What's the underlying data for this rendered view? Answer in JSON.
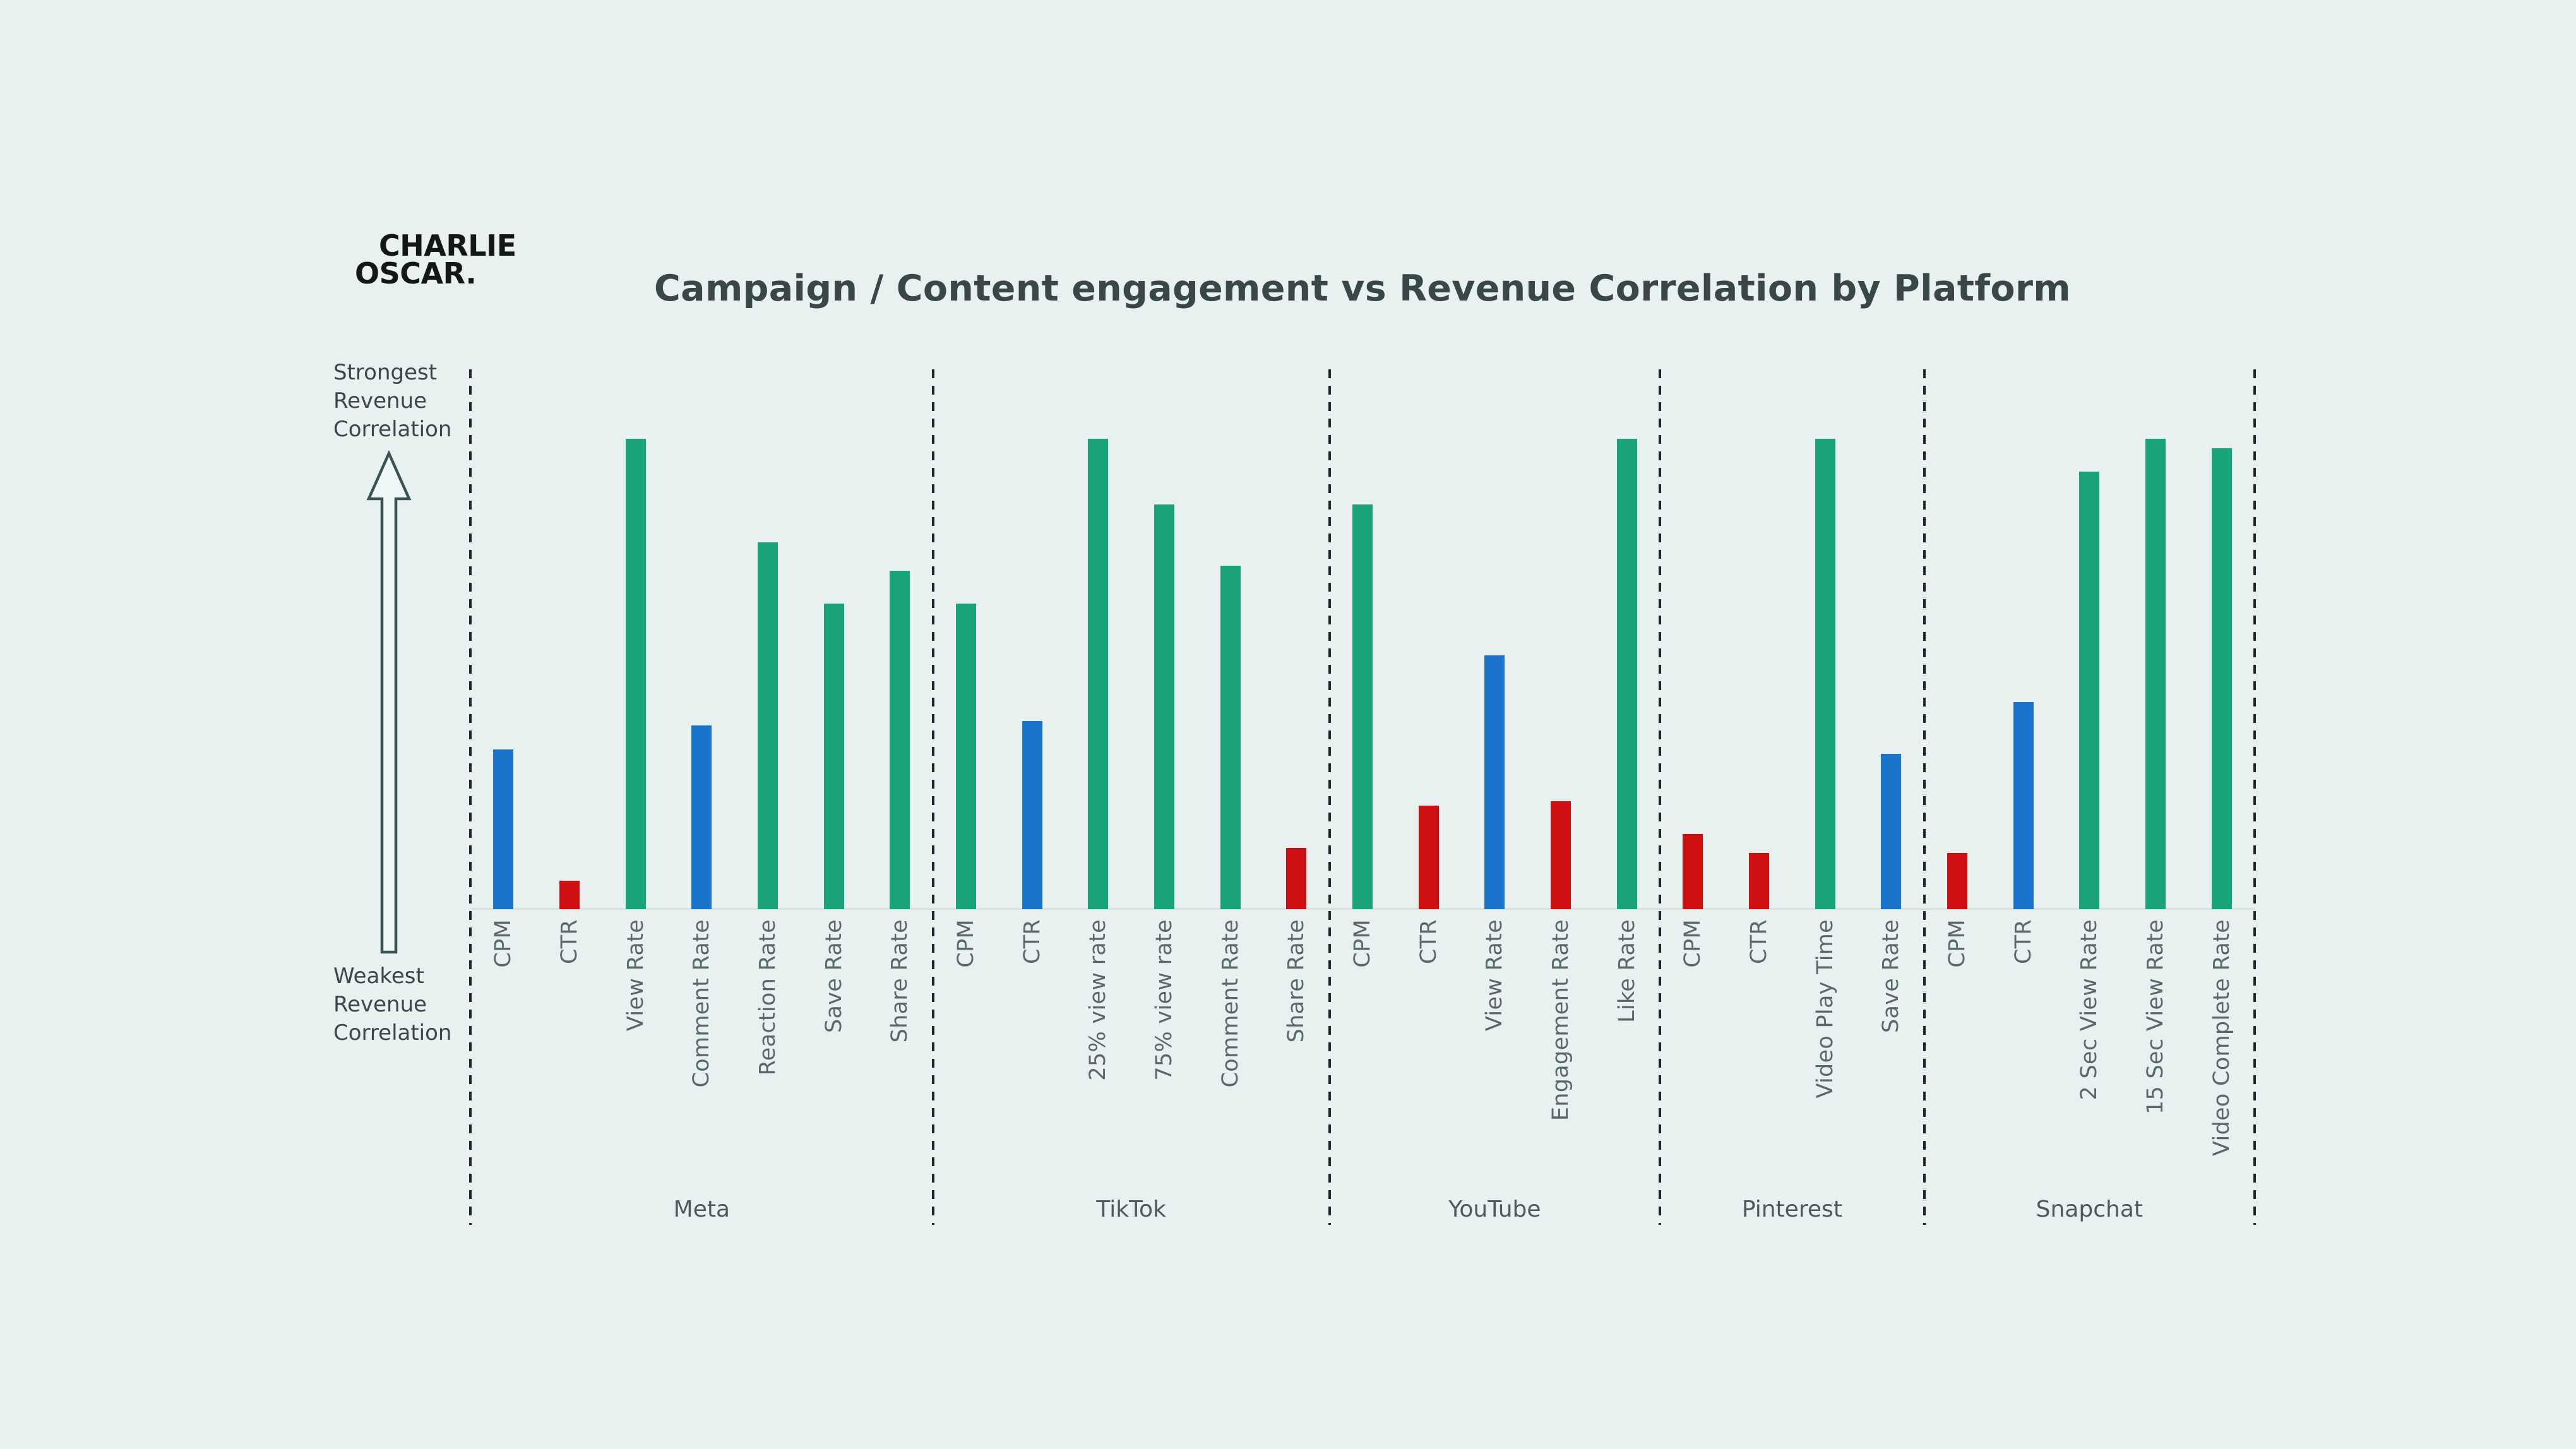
{
  "logo": {
    "line1": "CHARLIE",
    "line2": "OSCAR."
  },
  "title": "Campaign / Content engagement vs Revenue Correlation by Platform",
  "y_axis": {
    "top_label": "Strongest\nRevenue\nCorrelation",
    "bottom_label": "Weakest\nRevenue\nCorrelation"
  },
  "palette": {
    "green": "#19a378",
    "blue": "#1a74cc",
    "red": "#cf1012",
    "background": "#e9f1f0",
    "dash": "#1d2727",
    "baseline": "#d7e1e0",
    "title_text": "#3a4747",
    "label_text": "#59686c",
    "platform_text": "#4c5a5c",
    "arrow_stroke": "#3b5453",
    "arrow_fill": "#f0f8f7",
    "logo_text": "#131717"
  },
  "chart_data": {
    "type": "bar",
    "title": "Campaign / Content engagement vs Revenue Correlation by Platform",
    "ylabel_top": "Strongest Revenue Correlation",
    "ylabel_bottom": "Weakest Revenue Correlation",
    "value_unit": "relative revenue-correlation strength, % of tallest bar (no numeric axis shown; estimated from bar heights)",
    "ylim": [
      0,
      100
    ],
    "grid": false,
    "legend": false,
    "groups": [
      {
        "platform": "Meta",
        "bars": [
          {
            "label": "CPM",
            "value": 34,
            "color": "blue"
          },
          {
            "label": "CTR",
            "value": 6,
            "color": "red"
          },
          {
            "label": "View Rate",
            "value": 100,
            "color": "green"
          },
          {
            "label": "Comment Rate",
            "value": 39,
            "color": "blue"
          },
          {
            "label": "Reaction Rate",
            "value": 78,
            "color": "green"
          },
          {
            "label": "Save Rate",
            "value": 65,
            "color": "green"
          },
          {
            "label": "Share Rate",
            "value": 72,
            "color": "green"
          }
        ]
      },
      {
        "platform": "TikTok",
        "bars": [
          {
            "label": "CPM",
            "value": 65,
            "color": "green"
          },
          {
            "label": "CTR",
            "value": 40,
            "color": "blue"
          },
          {
            "label": "25% view rate",
            "value": 100,
            "color": "green"
          },
          {
            "label": "75% view rate",
            "value": 86,
            "color": "green"
          },
          {
            "label": "Comment Rate",
            "value": 73,
            "color": "green"
          },
          {
            "label": "Share Rate",
            "value": 13,
            "color": "red"
          }
        ]
      },
      {
        "platform": "YouTube",
        "bars": [
          {
            "label": "CPM",
            "value": 86,
            "color": "green"
          },
          {
            "label": "CTR",
            "value": 22,
            "color": "red"
          },
          {
            "label": "View Rate",
            "value": 54,
            "color": "blue"
          },
          {
            "label": "Engagement Rate",
            "value": 23,
            "color": "red"
          },
          {
            "label": "Like Rate",
            "value": 100,
            "color": "green"
          }
        ]
      },
      {
        "platform": "Pinterest",
        "bars": [
          {
            "label": "CPM",
            "value": 16,
            "color": "red"
          },
          {
            "label": "CTR",
            "value": 12,
            "color": "red"
          },
          {
            "label": "Video Play Time",
            "value": 100,
            "color": "green"
          },
          {
            "label": "Save Rate",
            "value": 33,
            "color": "blue"
          }
        ]
      },
      {
        "platform": "Snapchat",
        "bars": [
          {
            "label": "CPM",
            "value": 12,
            "color": "red"
          },
          {
            "label": "CTR",
            "value": 44,
            "color": "blue"
          },
          {
            "label": "2 Sec View Rate",
            "value": 93,
            "color": "green"
          },
          {
            "label": "15 Sec View Rate",
            "value": 100,
            "color": "green"
          },
          {
            "label": "Video Complete Rate",
            "value": 98,
            "color": "green"
          }
        ]
      }
    ]
  }
}
